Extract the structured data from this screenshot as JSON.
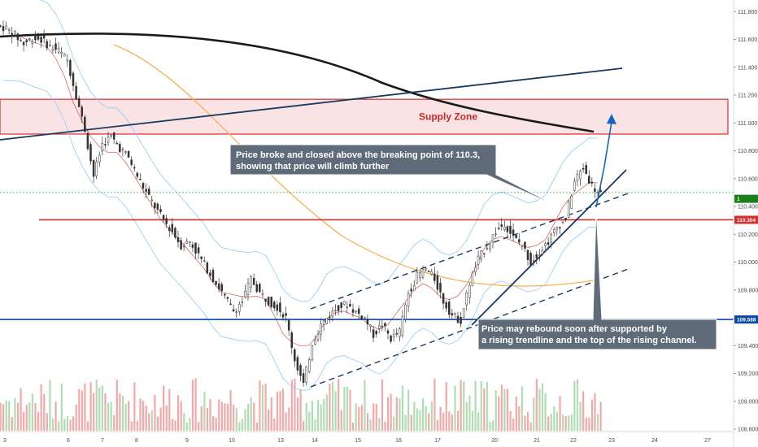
{
  "chart_data": {
    "type": "candlestick",
    "instrument_hint": "price chart with annotations",
    "x_ticks": [
      "3",
      "6",
      "7",
      "8",
      "9",
      "10",
      "13",
      "14",
      "15",
      "16",
      "17",
      "20",
      "21",
      "22",
      "23",
      "24",
      "27"
    ],
    "y_ticks": [
      "111.800",
      "111.600",
      "111.400",
      "111.200",
      "111.000",
      "110.800",
      "110.600",
      "110.400",
      "110.200",
      "110.000",
      "109.800",
      "109.600",
      "109.400",
      "109.200",
      "109.000",
      "108.800"
    ],
    "ylim": [
      108.73,
      111.86
    ],
    "price_tags": [
      {
        "label": "110.304",
        "value": 110.304,
        "color": "#d32f2f"
      },
      {
        "label": "109.588",
        "value": 109.588,
        "color": "#0d47a1"
      },
      {
        "label": "1",
        "value": 110.455,
        "color": "#1b7f1b"
      }
    ],
    "horizontal_lines": [
      {
        "value": 110.304,
        "color": "#d32f2f"
      },
      {
        "value": 109.588,
        "color": "#0d47a1"
      },
      {
        "value": 110.5,
        "color": "#43a047",
        "dashed": true
      }
    ],
    "supply_zone": {
      "label": "Supply Zone",
      "from": 110.92,
      "to": 111.17
    },
    "annotations": [
      {
        "lines": [
          "Price broke and closed above the breaking point of 110.3,",
          "showing that price will climb further"
        ]
      },
      {
        "lines": [
          "Price may rebound soon after supported by",
          "a rising trendline and the top of the rising channel."
        ]
      }
    ],
    "series": [
      {
        "role": "close",
        "values": [
          111.68,
          111.63,
          111.57,
          111.61,
          111.6,
          111.55,
          111.52,
          111.45,
          111.2,
          110.95,
          110.62,
          110.85,
          110.9,
          110.82,
          110.75,
          110.62,
          110.5,
          110.4,
          110.3,
          110.22,
          110.12,
          110.15,
          110.05,
          109.95,
          109.85,
          109.75,
          109.65,
          109.72,
          109.88,
          109.78,
          109.72,
          109.68,
          109.6,
          109.3,
          109.12,
          109.42,
          109.55,
          109.62,
          109.68,
          109.7,
          109.64,
          109.6,
          109.48,
          109.55,
          109.45,
          109.5,
          109.78,
          109.9,
          109.95,
          109.88,
          109.72,
          109.62,
          109.58,
          109.85,
          110.02,
          110.12,
          110.22,
          110.28,
          110.18,
          110.12,
          110.0,
          110.08,
          110.15,
          110.25,
          110.32,
          110.58,
          110.68,
          110.55,
          110.48
        ]
      }
    ]
  }
}
